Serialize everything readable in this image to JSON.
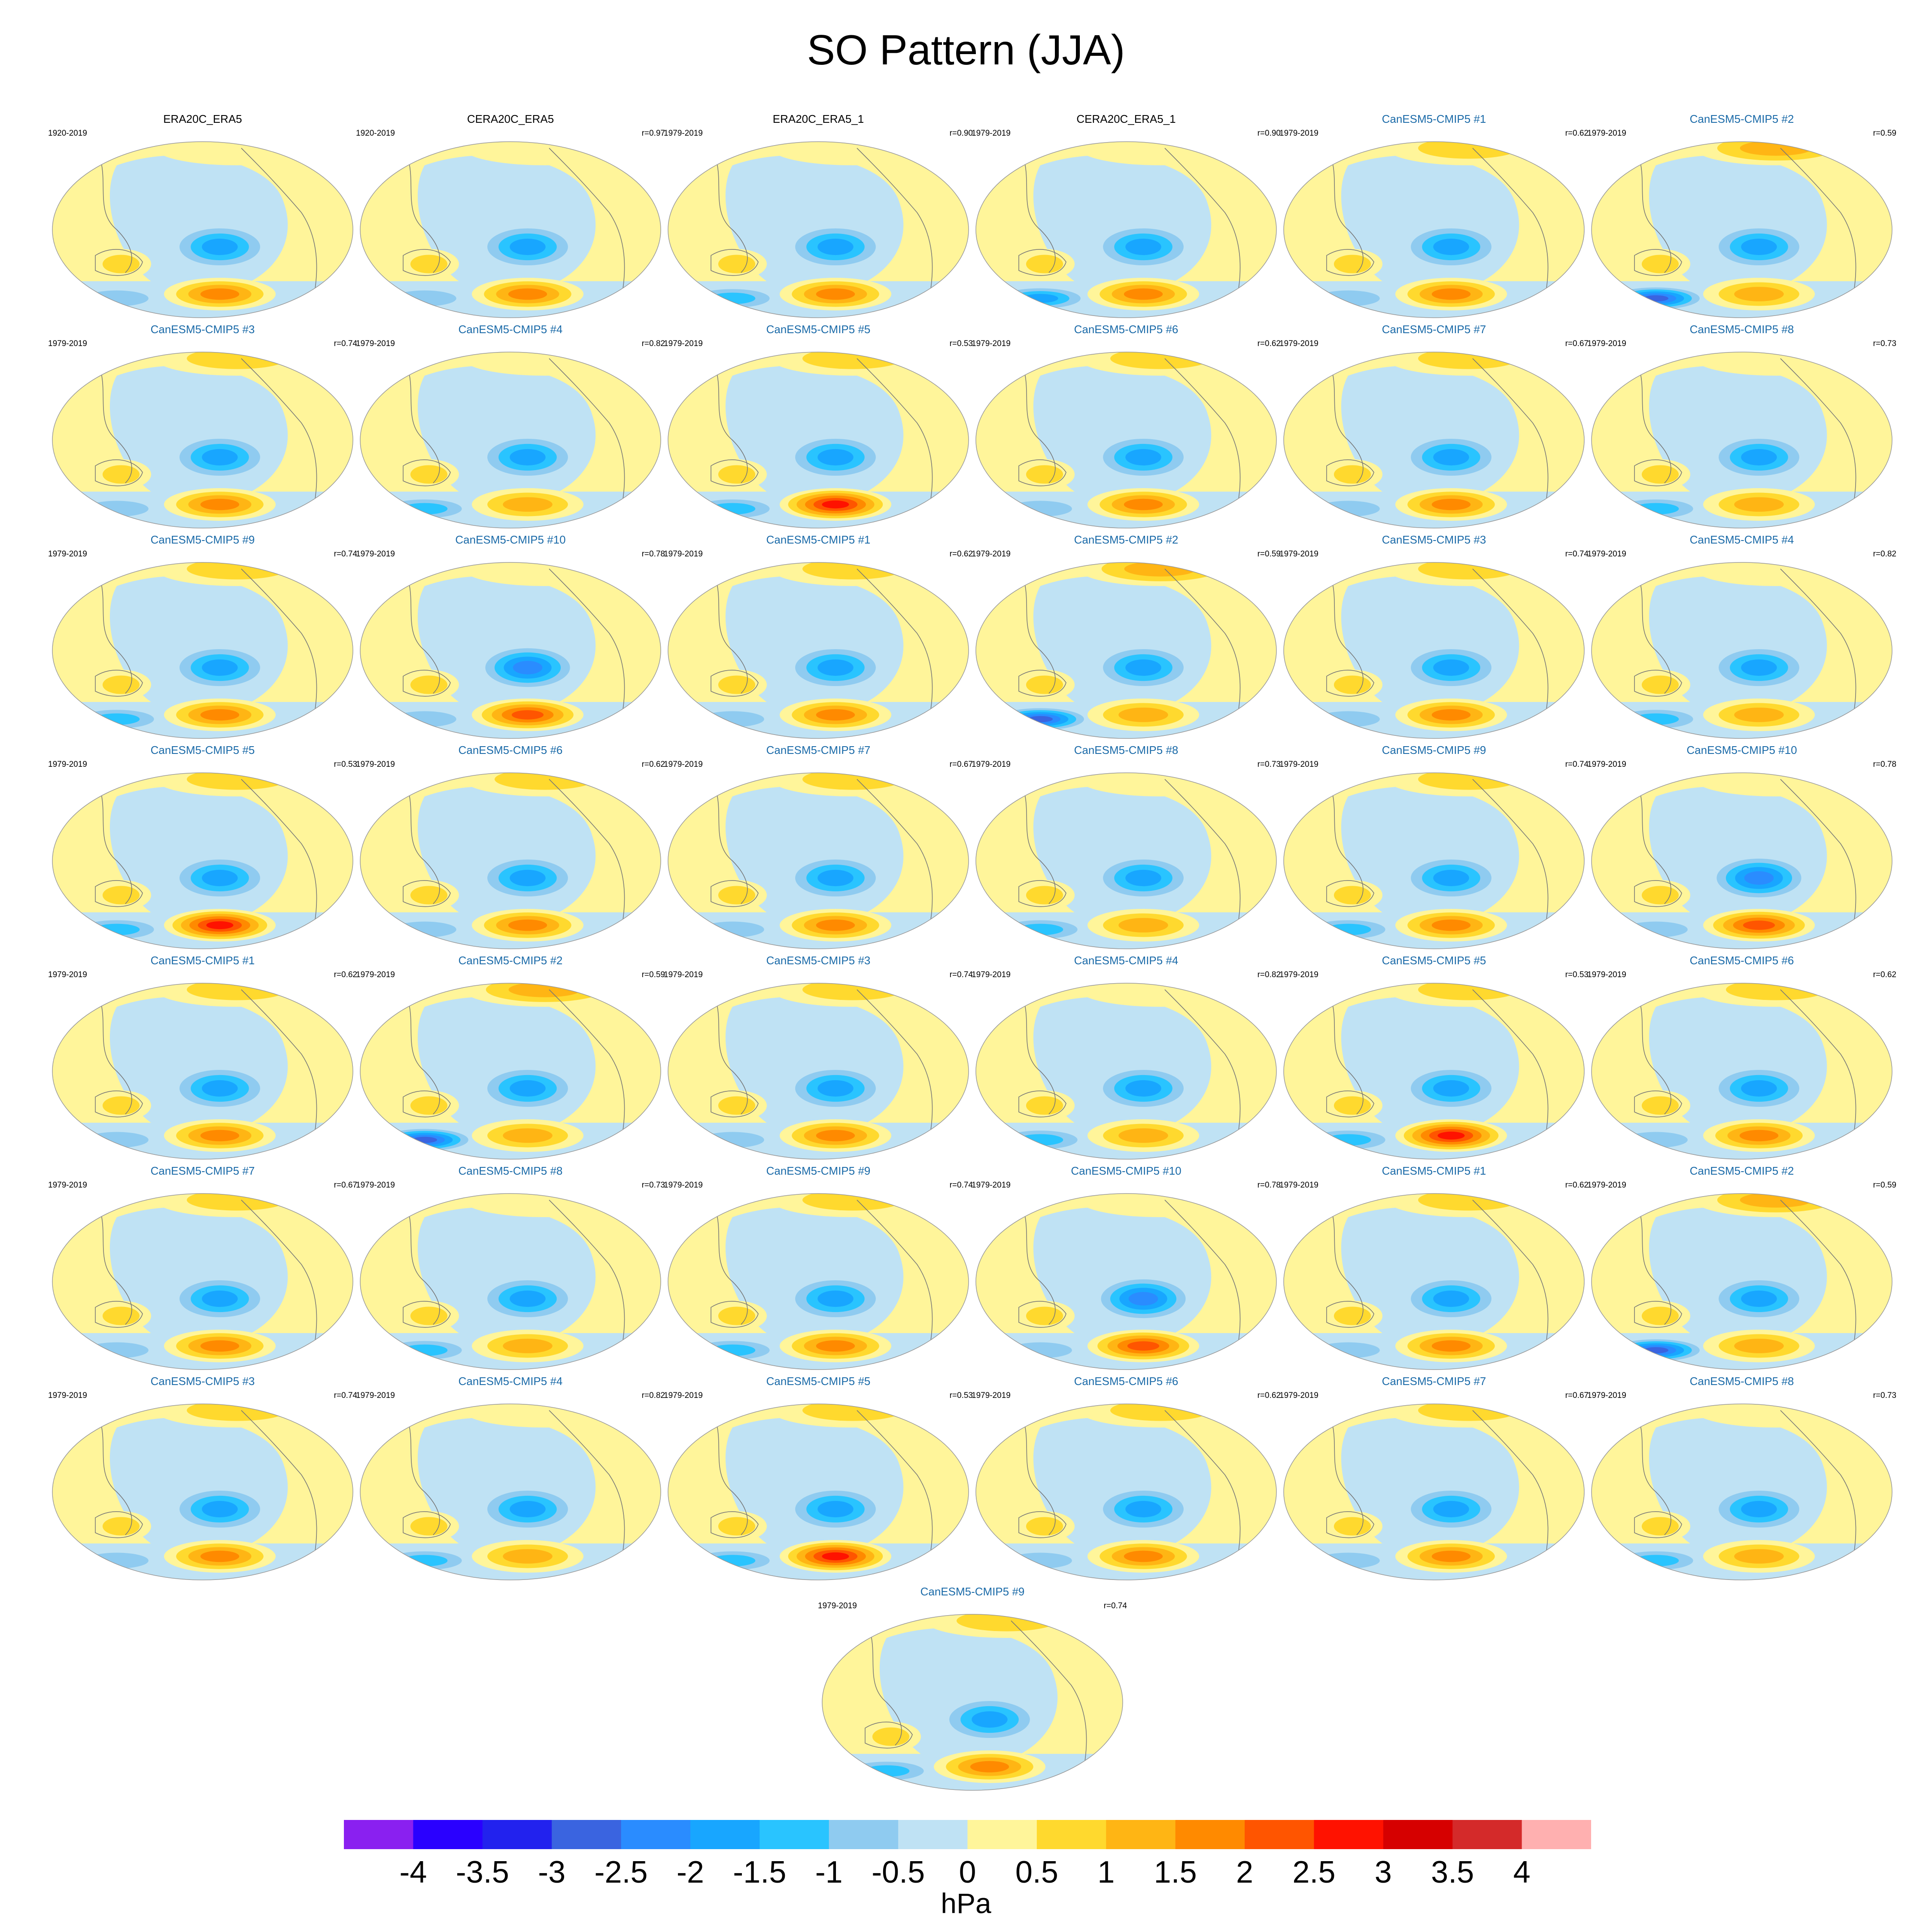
{
  "figure": {
    "title": "SO Pattern (JJA)"
  },
  "colorbar": {
    "unit": "hPa",
    "tick_labels": [
      "-4",
      "-3.5",
      "-3",
      "-2.5",
      "-2",
      "-1.5",
      "-1",
      "-0.5",
      "0",
      "0.5",
      "1",
      "1.5",
      "2",
      "2.5",
      "3",
      "3.5",
      "4"
    ],
    "colors": [
      "#8a20f0",
      "#2a00ff",
      "#2222ee",
      "#3a64e0",
      "#2a8cff",
      "#18a6ff",
      "#29c4ff",
      "#8fcbf0",
      "#bfe2f4",
      "#fff59a",
      "#ffd92e",
      "#ffb514",
      "#ff8a00",
      "#ff5500",
      "#ff1200",
      "#d60000",
      "#d42a2a",
      "#ffb0b0"
    ]
  },
  "chart_data": {
    "type": "contour-map-panels",
    "title": "SO Pattern (JJA)",
    "variable_unit": "hPa",
    "levels": [
      -4,
      -3.5,
      -3,
      -2.5,
      -2,
      -1.5,
      -1,
      -0.5,
      0,
      0.5,
      1,
      1.5,
      2,
      2.5,
      3,
      3.5,
      4
    ],
    "panels": [
      {
        "title": "ERA20C_ERA5",
        "years": "1920-2019",
        "r": "",
        "kind": "obs",
        "neg": -2.0,
        "pos": 2.2,
        "south": -1.0,
        "north": 0.5
      },
      {
        "title": "CERA20C_ERA5",
        "years": "1920-2019",
        "r": "r=0.97",
        "kind": "obs",
        "neg": -2.0,
        "pos": 2.0,
        "south": -0.8,
        "north": 0.4
      },
      {
        "title": "ERA20C_ERA5_1",
        "years": "1979-2019",
        "r": "r=0.90",
        "kind": "obs",
        "neg": -2.0,
        "pos": 2.2,
        "south": -1.6,
        "north": 0.5
      },
      {
        "title": "CERA20C_ERA5_1",
        "years": "1979-2019",
        "r": "r=0.90",
        "kind": "obs",
        "neg": -2.0,
        "pos": 2.2,
        "south": -1.8,
        "north": 0.5
      },
      {
        "title": "CanESM5-CMIP5 #1",
        "years": "1979-2019",
        "r": "r=0.62",
        "kind": "model",
        "neg": -2.0,
        "pos": 2.0,
        "south": -1.2,
        "north": 0.8
      },
      {
        "title": "CanESM5-CMIP5 #2",
        "years": "1979-2019",
        "r": "r=0.59",
        "kind": "model",
        "neg": -2.0,
        "pos": 1.6,
        "south": -3.0,
        "north": 1.6
      },
      {
        "title": "CanESM5-CMIP5 #3",
        "years": "1979-2019",
        "r": "r=0.74",
        "kind": "model",
        "neg": -1.8,
        "pos": 2.2,
        "south": -1.2,
        "north": 0.8
      },
      {
        "title": "CanESM5-CMIP5 #4",
        "years": "1979-2019",
        "r": "r=0.82",
        "kind": "model",
        "neg": -2.0,
        "pos": 1.5,
        "south": -1.4,
        "north": 0.6
      },
      {
        "title": "CanESM5-CMIP5 #5",
        "years": "1979-2019",
        "r": "r=0.53",
        "kind": "model",
        "neg": -2.0,
        "pos": 2.8,
        "south": -1.6,
        "north": 0.8
      },
      {
        "title": "CanESM5-CMIP5 #6",
        "years": "1979-2019",
        "r": "r=0.62",
        "kind": "model",
        "neg": -2.0,
        "pos": 1.8,
        "south": -1.0,
        "north": 1.2
      },
      {
        "title": "CanESM5-CMIP5 #7",
        "years": "1979-2019",
        "r": "r=0.67",
        "kind": "model",
        "neg": -2.0,
        "pos": 2.0,
        "south": -1.0,
        "north": 0.8
      },
      {
        "title": "CanESM5-CMIP5 #8",
        "years": "1979-2019",
        "r": "r=0.73",
        "kind": "model",
        "neg": -2.0,
        "pos": 1.5,
        "south": -1.4,
        "north": 0.6
      },
      {
        "title": "CanESM5-CMIP5 #9",
        "years": "1979-2019",
        "r": "r=0.74",
        "kind": "model",
        "neg": -2.0,
        "pos": 2.0,
        "south": -1.4,
        "north": 0.8
      },
      {
        "title": "CanESM5-CMIP5 #10",
        "years": "1979-2019",
        "r": "r=0.78",
        "kind": "model",
        "neg": -2.5,
        "pos": 2.5,
        "south": -1.2,
        "north": 0.6
      },
      {
        "title": "CanESM5-CMIP5 #1",
        "years": "1979-2019",
        "r": "r=0.62",
        "kind": "model",
        "neg": -2.0,
        "pos": 2.0,
        "south": -1.2,
        "north": 0.8
      },
      {
        "title": "CanESM5-CMIP5 #2",
        "years": "1979-2019",
        "r": "r=0.59",
        "kind": "model",
        "neg": -2.0,
        "pos": 1.6,
        "south": -3.0,
        "north": 1.6
      },
      {
        "title": "CanESM5-CMIP5 #3",
        "years": "1979-2019",
        "r": "r=0.74",
        "kind": "model",
        "neg": -1.8,
        "pos": 2.2,
        "south": -1.2,
        "north": 0.8
      },
      {
        "title": "CanESM5-CMIP5 #4",
        "years": "1979-2019",
        "r": "r=0.82",
        "kind": "model",
        "neg": -2.0,
        "pos": 1.5,
        "south": -1.4,
        "north": 0.6
      },
      {
        "title": "CanESM5-CMIP5 #5",
        "years": "1979-2019",
        "r": "r=0.53",
        "kind": "model",
        "neg": -2.0,
        "pos": 2.8,
        "south": -1.6,
        "north": 0.8
      },
      {
        "title": "CanESM5-CMIP5 #6",
        "years": "1979-2019",
        "r": "r=0.62",
        "kind": "model",
        "neg": -2.0,
        "pos": 1.8,
        "south": -1.0,
        "north": 1.2
      },
      {
        "title": "CanESM5-CMIP5 #7",
        "years": "1979-2019",
        "r": "r=0.67",
        "kind": "model",
        "neg": -2.0,
        "pos": 2.0,
        "south": -1.0,
        "north": 0.8
      },
      {
        "title": "CanESM5-CMIP5 #8",
        "years": "1979-2019",
        "r": "r=0.73",
        "kind": "model",
        "neg": -2.0,
        "pos": 1.5,
        "south": -1.4,
        "north": 0.6
      },
      {
        "title": "CanESM5-CMIP5 #9",
        "years": "1979-2019",
        "r": "r=0.74",
        "kind": "model",
        "neg": -2.0,
        "pos": 2.0,
        "south": -1.4,
        "north": 0.8
      },
      {
        "title": "CanESM5-CMIP5 #10",
        "years": "1979-2019",
        "r": "r=0.78",
        "kind": "model",
        "neg": -2.5,
        "pos": 2.5,
        "south": -1.2,
        "north": 0.6
      },
      {
        "title": "CanESM5-CMIP5 #1",
        "years": "1979-2019",
        "r": "r=0.62",
        "kind": "model",
        "neg": -2.0,
        "pos": 2.0,
        "south": -1.2,
        "north": 0.8
      },
      {
        "title": "CanESM5-CMIP5 #2",
        "years": "1979-2019",
        "r": "r=0.59",
        "kind": "model",
        "neg": -2.0,
        "pos": 1.6,
        "south": -3.0,
        "north": 1.6
      },
      {
        "title": "CanESM5-CMIP5 #3",
        "years": "1979-2019",
        "r": "r=0.74",
        "kind": "model",
        "neg": -1.8,
        "pos": 2.2,
        "south": -1.2,
        "north": 0.8
      },
      {
        "title": "CanESM5-CMIP5 #4",
        "years": "1979-2019",
        "r": "r=0.82",
        "kind": "model",
        "neg": -2.0,
        "pos": 1.5,
        "south": -1.4,
        "north": 0.6
      },
      {
        "title": "CanESM5-CMIP5 #5",
        "years": "1979-2019",
        "r": "r=0.53",
        "kind": "model",
        "neg": -2.0,
        "pos": 2.8,
        "south": -1.6,
        "north": 0.8
      },
      {
        "title": "CanESM5-CMIP5 #6",
        "years": "1979-2019",
        "r": "r=0.62",
        "kind": "model",
        "neg": -2.0,
        "pos": 1.8,
        "south": -1.0,
        "north": 1.2
      },
      {
        "title": "CanESM5-CMIP5 #7",
        "years": "1979-2019",
        "r": "r=0.67",
        "kind": "model",
        "neg": -2.0,
        "pos": 2.0,
        "south": -1.0,
        "north": 0.8
      },
      {
        "title": "CanESM5-CMIP5 #8",
        "years": "1979-2019",
        "r": "r=0.73",
        "kind": "model",
        "neg": -2.0,
        "pos": 1.5,
        "south": -1.4,
        "north": 0.6
      },
      {
        "title": "CanESM5-CMIP5 #9",
        "years": "1979-2019",
        "r": "r=0.74",
        "kind": "model",
        "neg": -2.0,
        "pos": 2.0,
        "south": -1.4,
        "north": 0.8
      },
      {
        "title": "CanESM5-CMIP5 #10",
        "years": "1979-2019",
        "r": "r=0.78",
        "kind": "model",
        "neg": -2.5,
        "pos": 2.5,
        "south": -1.2,
        "north": 0.6
      },
      {
        "title": "CanESM5-CMIP5 #1",
        "years": "1979-2019",
        "r": "r=0.62",
        "kind": "model",
        "neg": -2.0,
        "pos": 2.0,
        "south": -1.2,
        "north": 0.8
      },
      {
        "title": "CanESM5-CMIP5 #2",
        "years": "1979-2019",
        "r": "r=0.59",
        "kind": "model",
        "neg": -2.0,
        "pos": 1.6,
        "south": -3.0,
        "north": 1.6
      },
      {
        "title": "CanESM5-CMIP5 #3",
        "years": "1979-2019",
        "r": "r=0.74",
        "kind": "model",
        "neg": -1.8,
        "pos": 2.2,
        "south": -1.2,
        "north": 0.8
      },
      {
        "title": "CanESM5-CMIP5 #4",
        "years": "1979-2019",
        "r": "r=0.82",
        "kind": "model",
        "neg": -2.0,
        "pos": 1.5,
        "south": -1.4,
        "north": 0.6
      },
      {
        "title": "CanESM5-CMIP5 #5",
        "years": "1979-2019",
        "r": "r=0.53",
        "kind": "model",
        "neg": -2.0,
        "pos": 2.8,
        "south": -1.6,
        "north": 0.8
      },
      {
        "title": "CanESM5-CMIP5 #6",
        "years": "1979-2019",
        "r": "r=0.62",
        "kind": "model",
        "neg": -2.0,
        "pos": 1.8,
        "south": -1.0,
        "north": 1.2
      },
      {
        "title": "CanESM5-CMIP5 #7",
        "years": "1979-2019",
        "r": "r=0.67",
        "kind": "model",
        "neg": -2.0,
        "pos": 2.0,
        "south": -1.0,
        "north": 0.8
      },
      {
        "title": "CanESM5-CMIP5 #8",
        "years": "1979-2019",
        "r": "r=0.73",
        "kind": "model",
        "neg": -2.0,
        "pos": 1.5,
        "south": -1.4,
        "north": 0.6
      },
      {
        "title": "CanESM5-CMIP5 #9",
        "years": "1979-2019",
        "r": "r=0.74",
        "kind": "model",
        "neg": -2.0,
        "pos": 2.0,
        "south": -1.4,
        "north": 0.8
      }
    ]
  }
}
